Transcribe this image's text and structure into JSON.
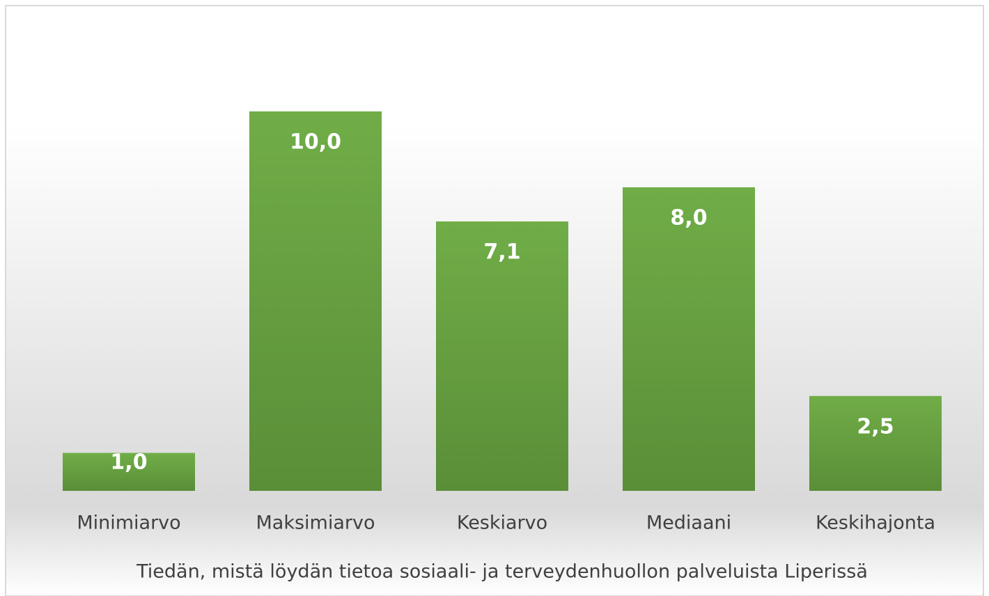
{
  "chart_data": {
    "type": "bar",
    "categories": [
      "Minimiarvo",
      "Maksimiarvo",
      "Keskiarvo",
      "Mediaani",
      "Keskihajonta"
    ],
    "values": [
      1.0,
      10.0,
      7.1,
      8.0,
      2.5
    ],
    "value_labels": [
      "1,0",
      "10,0",
      "7,1",
      "8,0",
      "2,5"
    ],
    "color": "#70ad47",
    "x_label": "Tiedän, mistä löydän tietoa sosiaali- ja terveydenhuollon palveluista Liperissä"
  }
}
